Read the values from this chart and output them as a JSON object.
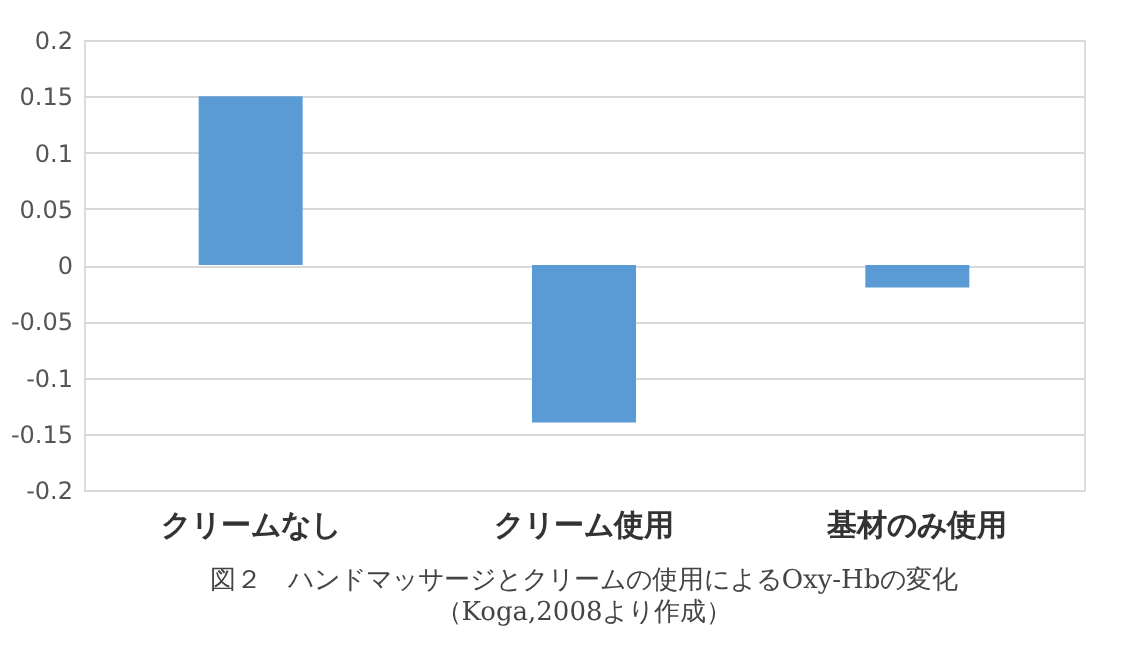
{
  "chart_data": {
    "type": "bar",
    "title": "図２　ハンドマッサージとクリームの使用によるOxy-Hbの変化",
    "annotations": [
      "（Koga,2008より作成）"
    ],
    "categories": [
      "クリームなし",
      "クリーム使用",
      "基材のみ使用"
    ],
    "values": [
      0.15,
      -0.14,
      -0.02
    ],
    "color": "#5b9bd5",
    "ylim": [
      -0.2,
      0.2
    ],
    "yticks": [
      -0.2,
      -0.15,
      -0.1,
      -0.05,
      0,
      0.05,
      0.1,
      0.15,
      0.2
    ],
    "grid": "y"
  }
}
